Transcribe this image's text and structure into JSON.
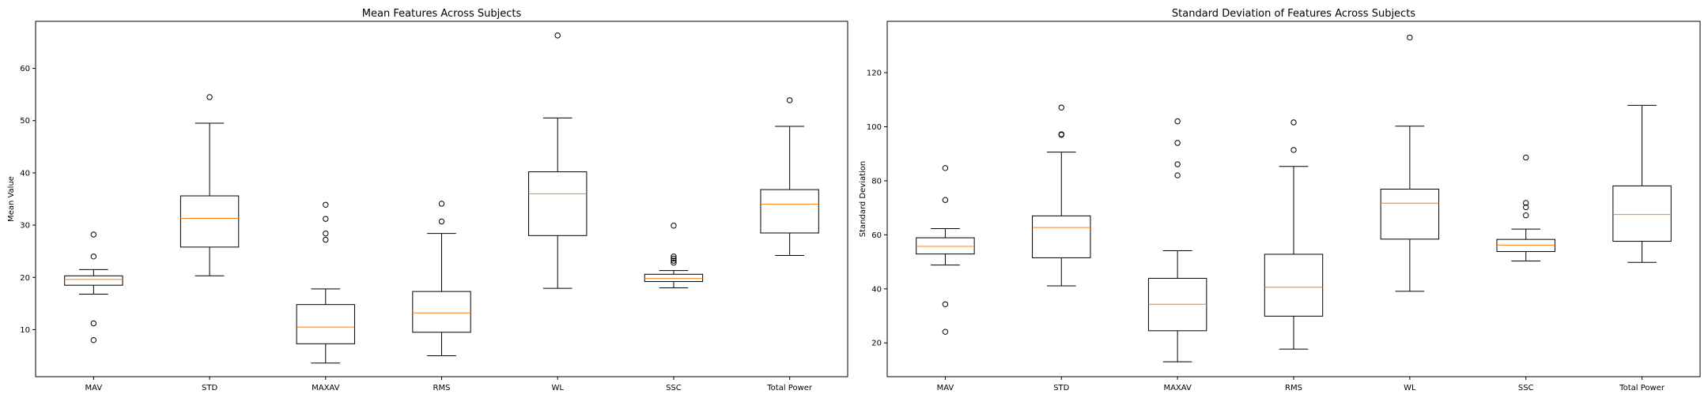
{
  "chart_data": [
    {
      "type": "box",
      "title": "Mean Features Across Subjects",
      "xlabel": "",
      "ylabel": "Mean Value",
      "ylim": [
        1,
        69
      ],
      "yticks": [
        10,
        20,
        30,
        40,
        50,
        60
      ],
      "grid": false,
      "categories": [
        "MAV",
        "STD",
        "MAXAV",
        "RMS",
        "WL",
        "SSC",
        "Total Power"
      ],
      "boxes": [
        {
          "whisker_low": 16.8,
          "q1": 18.5,
          "median": 19.6,
          "q3": 20.3,
          "whisker_high": 21.5,
          "outliers": [
            28.2,
            24.0,
            11.2,
            8.0
          ]
        },
        {
          "whisker_low": 20.3,
          "q1": 25.8,
          "median": 31.3,
          "q3": 35.6,
          "whisker_high": 49.5,
          "outliers": [
            54.5
          ]
        },
        {
          "whisker_low": 3.6,
          "q1": 7.3,
          "median": 10.5,
          "q3": 14.8,
          "whisker_high": 17.8,
          "outliers": [
            33.9,
            31.2,
            28.4,
            27.2
          ]
        },
        {
          "whisker_low": 5.0,
          "q1": 9.5,
          "median": 13.2,
          "q3": 17.3,
          "whisker_high": 28.4,
          "outliers": [
            34.1,
            30.7
          ]
        },
        {
          "whisker_low": 17.9,
          "q1": 28.0,
          "median": 36.0,
          "q3": 40.2,
          "whisker_high": 50.5,
          "outliers": [
            66.3
          ]
        },
        {
          "whisker_low": 18.0,
          "q1": 19.2,
          "median": 19.8,
          "q3": 20.6,
          "whisker_high": 21.3,
          "outliers": [
            29.9,
            24.0,
            23.6,
            23.2,
            22.8
          ]
        },
        {
          "whisker_low": 24.2,
          "q1": 28.5,
          "median": 34.0,
          "q3": 36.8,
          "whisker_high": 48.9,
          "outliers": [
            53.9
          ]
        }
      ]
    },
    {
      "type": "box",
      "title": "Standard Deviation of Features Across Subjects",
      "xlabel": "",
      "ylabel": "Standard Deviation",
      "ylim": [
        7.5,
        139
      ],
      "yticks": [
        20,
        40,
        60,
        80,
        100,
        120
      ],
      "grid": false,
      "categories": [
        "MAV",
        "STD",
        "MAXAV",
        "RMS",
        "WL",
        "SSC",
        "Total Power"
      ],
      "boxes": [
        {
          "whisker_low": 48.8,
          "q1": 52.9,
          "median": 55.7,
          "q3": 58.9,
          "whisker_high": 62.3,
          "outliers": [
            84.7,
            72.9,
            34.3,
            24.1
          ]
        },
        {
          "whisker_low": 41.1,
          "q1": 51.5,
          "median": 62.7,
          "q3": 67.0,
          "whisker_high": 90.6,
          "outliers": [
            107.1,
            97.2,
            97.0
          ]
        },
        {
          "whisker_low": 13.0,
          "q1": 24.5,
          "median": 34.3,
          "q3": 43.9,
          "whisker_high": 54.1,
          "outliers": [
            102.0,
            94.0,
            86.1,
            82.0
          ]
        },
        {
          "whisker_low": 17.7,
          "q1": 29.9,
          "median": 40.6,
          "q3": 52.8,
          "whisker_high": 85.3,
          "outliers": [
            101.6,
            91.4
          ]
        },
        {
          "whisker_low": 39.1,
          "q1": 58.4,
          "median": 71.7,
          "q3": 76.9,
          "whisker_high": 100.2,
          "outliers": [
            133.0
          ]
        },
        {
          "whisker_low": 50.3,
          "q1": 53.8,
          "median": 56.2,
          "q3": 58.3,
          "whisker_high": 62.1,
          "outliers": [
            88.6,
            71.8,
            70.2,
            67.2
          ]
        },
        {
          "whisker_low": 49.8,
          "q1": 57.6,
          "median": 67.5,
          "q3": 78.1,
          "whisker_high": 107.9,
          "outliers": []
        }
      ]
    }
  ],
  "colors": {
    "box_stroke": "#000000",
    "median": "#ff7f0e",
    "background": "#ffffff"
  }
}
